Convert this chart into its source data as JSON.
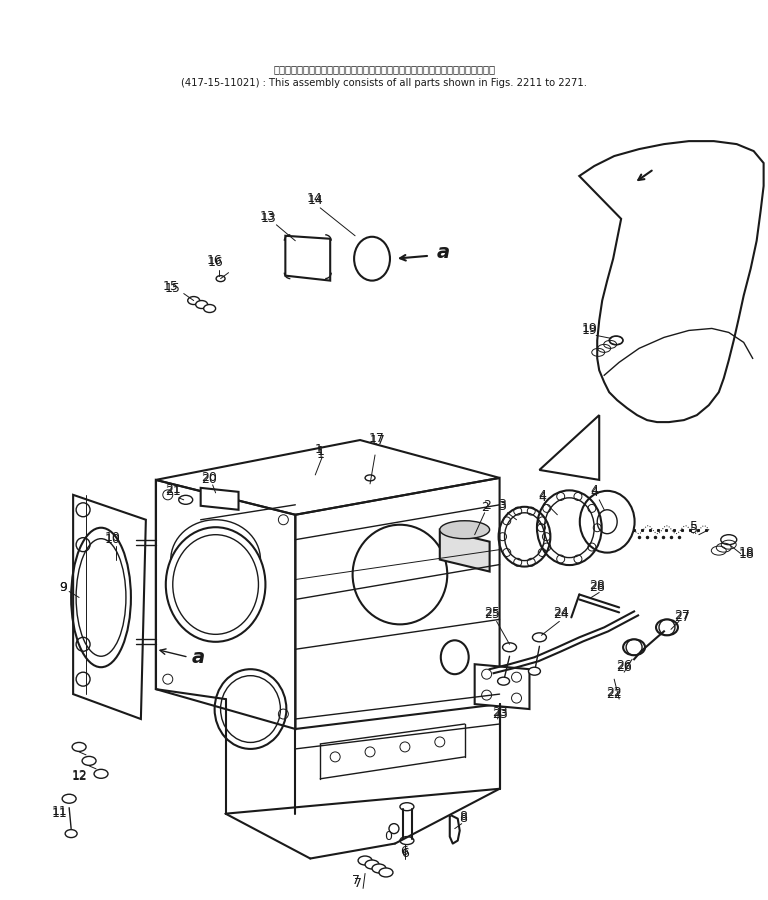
{
  "title_line1": "このアセンブリの構成部品は第２２１１図から第２２７１図の部品まで含みます。",
  "title_line2": "(417-15-11021) : This assembly consists of all parts shown in Figs. 2211 to 2271.",
  "bg_color": "#ffffff",
  "line_color": "#1a1a1a",
  "figsize": [
    7.68,
    9.0
  ],
  "dpi": 100
}
